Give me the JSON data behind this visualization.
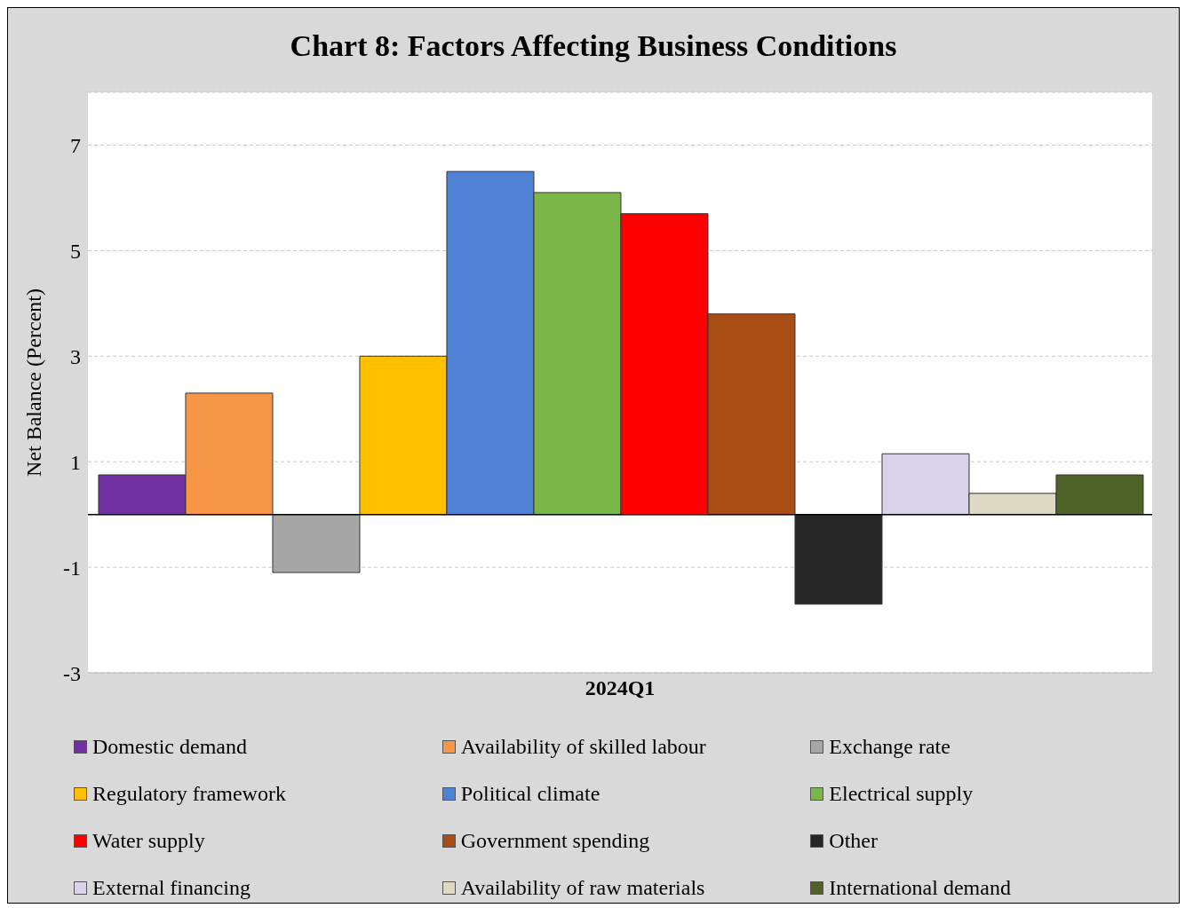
{
  "chart_data": {
    "type": "bar",
    "title": "Chart 8: Factors Affecting Business Conditions",
    "ylabel": "Net Balance (Percent)",
    "categories": [
      "2024Q1"
    ],
    "series": [
      {
        "name": "Domestic demand",
        "color": "#7030a0",
        "values": [
          0.75
        ]
      },
      {
        "name": "Availability of skilled labour",
        "color": "#f79646",
        "values": [
          2.3
        ]
      },
      {
        "name": "Exchange rate",
        "color": "#a6a6a6",
        "values": [
          -1.1
        ]
      },
      {
        "name": "Regulatory framework",
        "color": "#ffc000",
        "values": [
          3.0
        ]
      },
      {
        "name": "Political climate",
        "color": "#4f81d5",
        "values": [
          6.5
        ]
      },
      {
        "name": "Electrical supply",
        "color": "#7ab648",
        "values": [
          6.1
        ]
      },
      {
        "name": "Water supply",
        "color": "#ff0000",
        "values": [
          5.7
        ]
      },
      {
        "name": "Government spending",
        "color": "#a84e14",
        "values": [
          3.8
        ]
      },
      {
        "name": "Other",
        "color": "#262626",
        "values": [
          -1.7
        ]
      },
      {
        "name": "External financing",
        "color": "#d9d2e9",
        "values": [
          1.15
        ]
      },
      {
        "name": "Availability of raw materials",
        "color": "#ddd9c3",
        "values": [
          0.4
        ]
      },
      {
        "name": "International demand",
        "color": "#4f6228",
        "values": [
          0.75
        ]
      }
    ],
    "ylim": [
      -3,
      8
    ],
    "yticks": [
      -3,
      -1,
      1,
      3,
      5,
      7
    ],
    "grid": "y",
    "legend": "bottom",
    "ref_lines": [
      {
        "axis": "y",
        "value": 0,
        "color": "#000000"
      }
    ]
  }
}
